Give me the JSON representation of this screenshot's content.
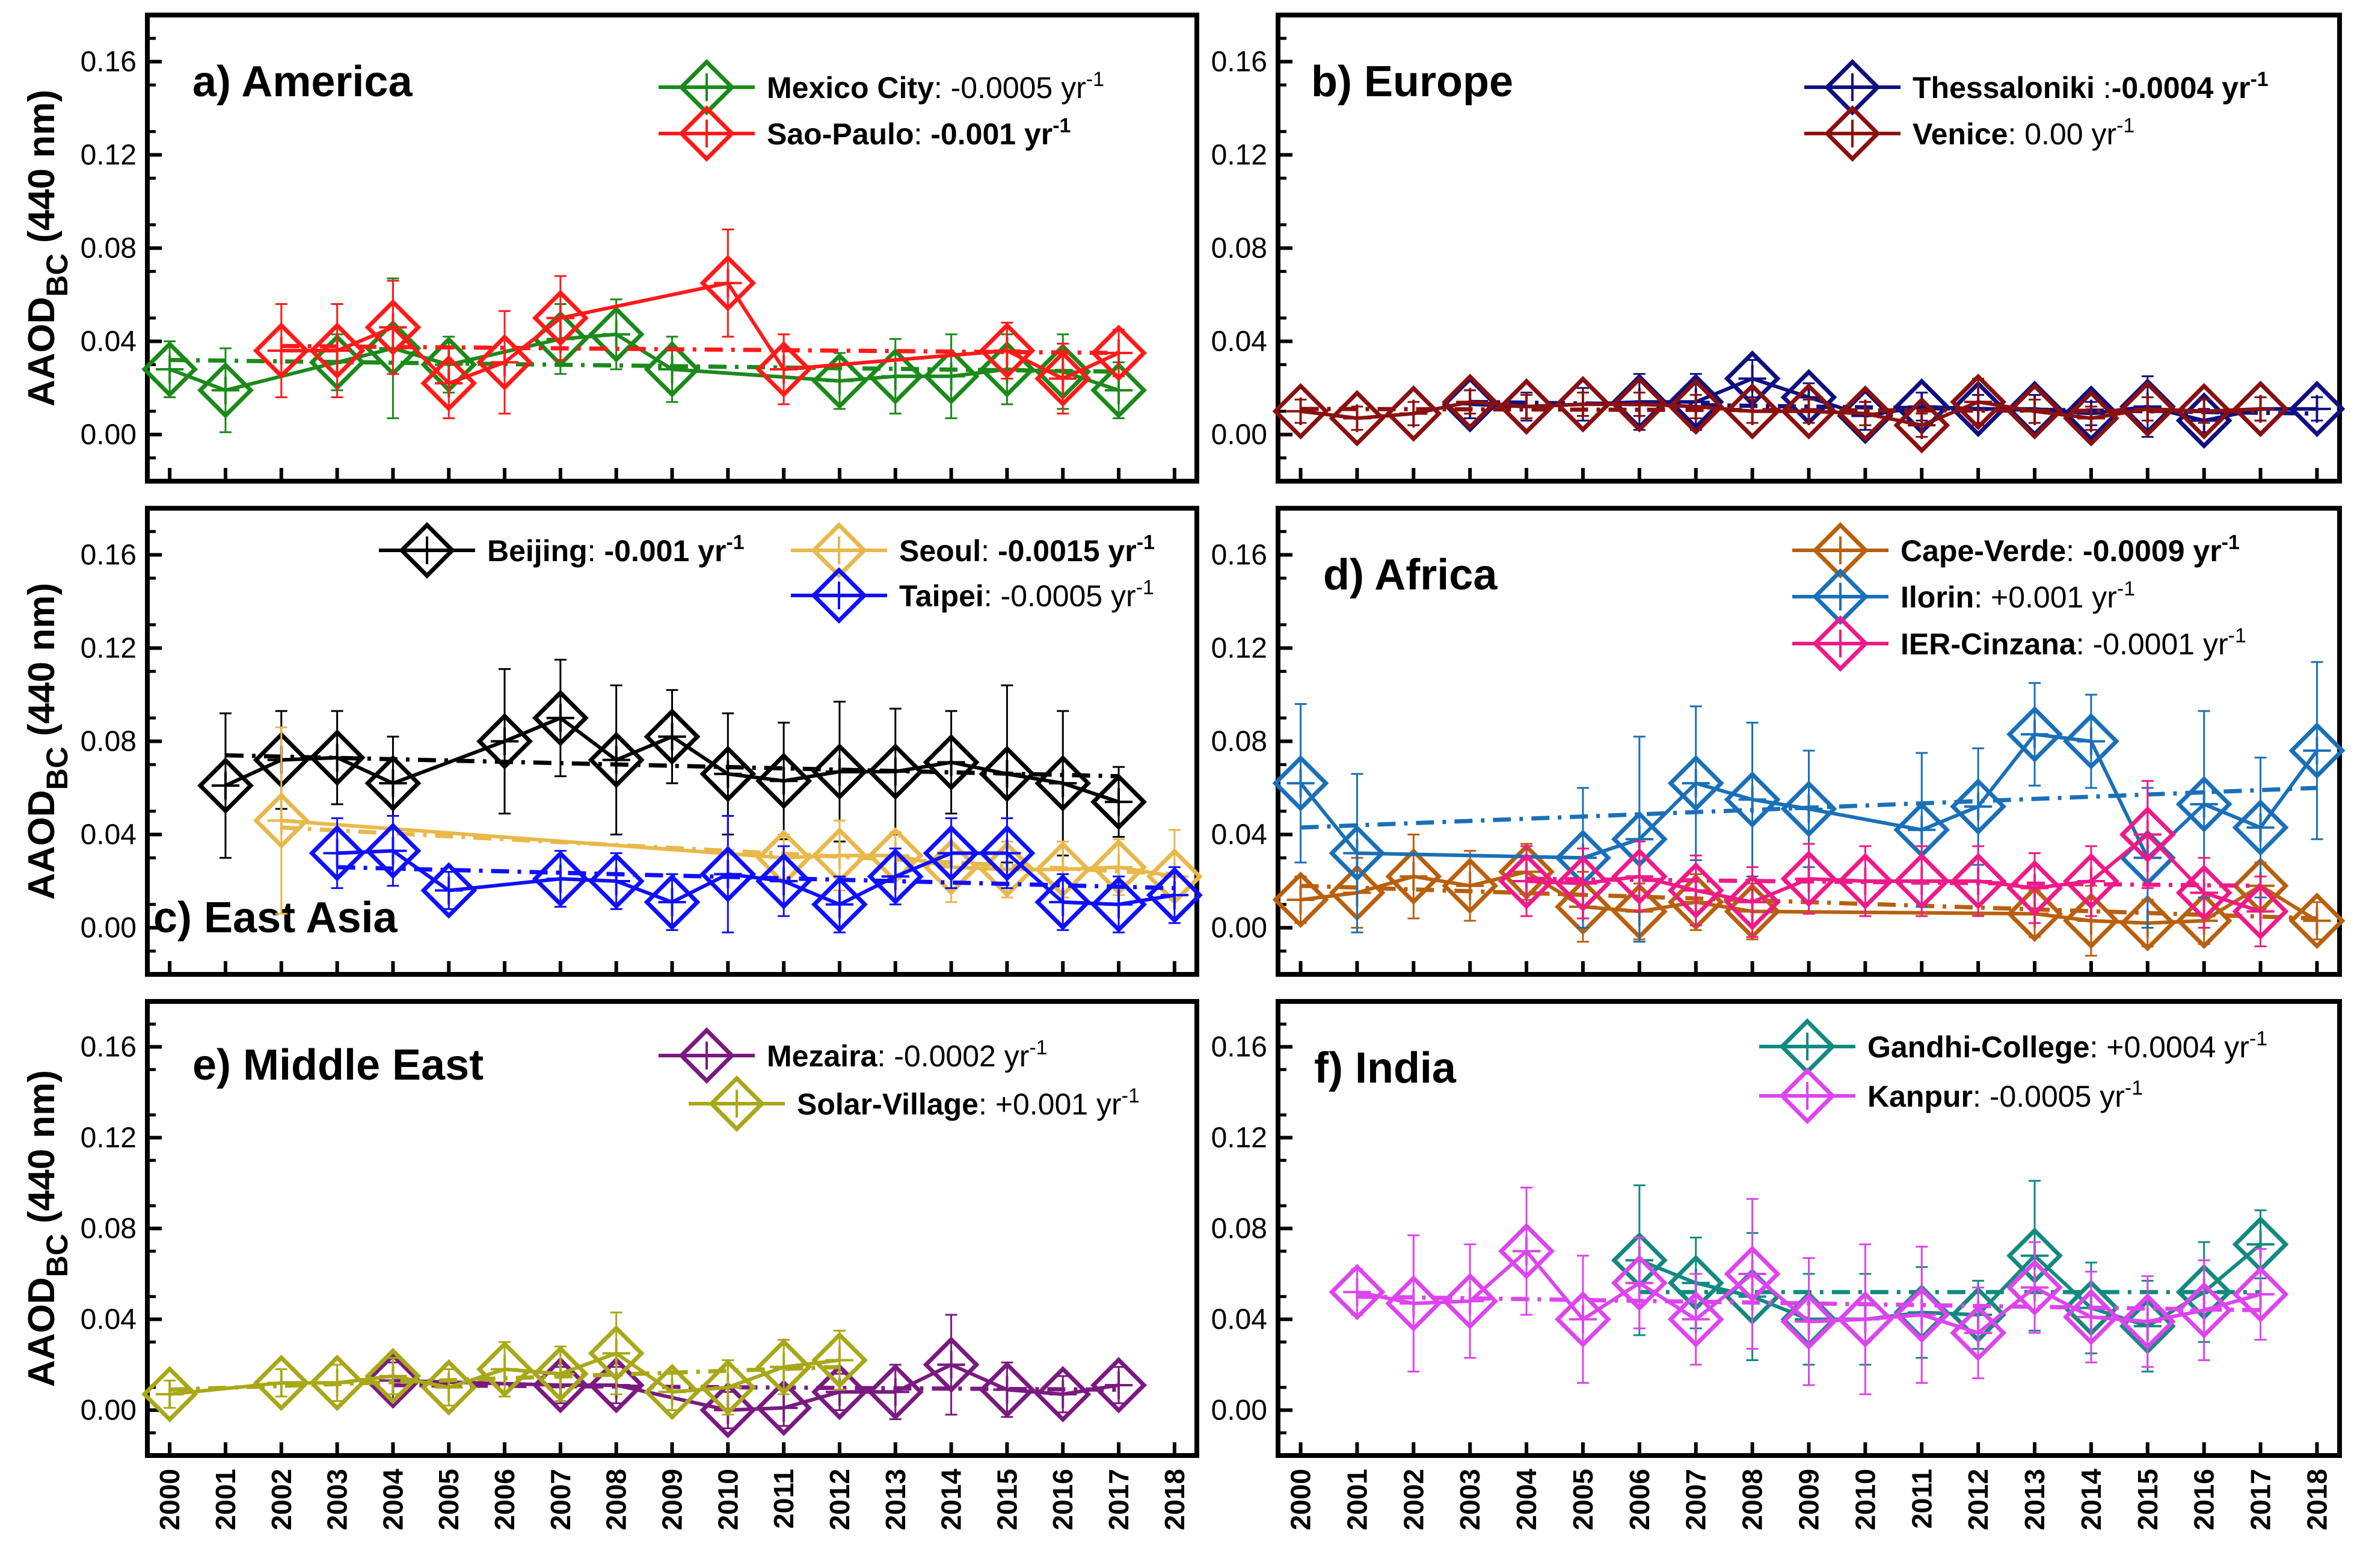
{
  "figure": {
    "ylabel_main": "AAOD",
    "ylabel_sub": "BC",
    "ylabel_unit": " (440 nm)",
    "yticks": [
      "0.00",
      "0.04",
      "0.08",
      "0.12",
      "0.16"
    ],
    "xticks": [
      "2000",
      "2001",
      "2002",
      "2003",
      "2004",
      "2005",
      "2006",
      "2007",
      "2008",
      "2009",
      "2010",
      "2011",
      "2012",
      "2013",
      "2014",
      "2015",
      "2016",
      "2017",
      "2018"
    ],
    "trend_unit": "yr",
    "trend_unit_exp": "-1"
  },
  "chart_data": [
    {
      "type": "line",
      "title": "a) America",
      "xlabel": "",
      "ylabel": "AAOD BC (440 nm)",
      "xlim": [
        1999.6,
        2018.4
      ],
      "ylim": [
        -0.02,
        0.18
      ],
      "series": [
        {
          "name": "Mexico City",
          "trend": "-0.0005",
          "trend_bold": false,
          "color": "#1b8a1b",
          "x": [
            2000,
            2001,
            2003,
            2004,
            2005,
            2007,
            2008,
            2009,
            2012,
            2013,
            2014,
            2015,
            2016,
            2017
          ],
          "values": [
            0.028,
            0.019,
            0.031,
            0.037,
            0.03,
            0.041,
            0.043,
            0.028,
            0.023,
            0.025,
            0.025,
            0.028,
            0.027,
            0.019
          ],
          "errors": [
            0.012,
            0.018,
            0.012,
            0.03,
            0.012,
            0.015,
            0.015,
            0.014,
            0.012,
            0.016,
            0.018,
            0.015,
            0.016,
            0.012
          ],
          "fit": {
            "x": [
              2000,
              2017
            ],
            "y": [
              0.032,
              0.027
            ]
          }
        },
        {
          "name": "Sao-Paulo",
          "trend": "-0.001",
          "trend_bold": true,
          "color": "#ff1a1a",
          "x": [
            2002,
            2003,
            2004,
            2005,
            2006,
            2007,
            2010,
            2011,
            2015,
            2016,
            2017
          ],
          "values": [
            0.036,
            0.036,
            0.046,
            0.022,
            0.031,
            0.05,
            0.065,
            0.028,
            0.036,
            0.024,
            0.035
          ],
          "errors": [
            0.02,
            0.02,
            0.02,
            0.015,
            0.022,
            0.018,
            0.023,
            0.015,
            0.012,
            0.015,
            0.01
          ],
          "fit": {
            "x": [
              2002,
              2017
            ],
            "y": [
              0.038,
              0.035
            ]
          }
        }
      ]
    },
    {
      "type": "line",
      "title": "b) Europe",
      "xlabel": "",
      "ylabel": "",
      "xlim": [
        1999.6,
        2018.4
      ],
      "ylim": [
        -0.02,
        0.18
      ],
      "series": [
        {
          "name": "Thessaloniki",
          "trend": "-0.0004",
          "trend_bold": true,
          "color": "#101080",
          "x": [
            2003,
            2004,
            2005,
            2006,
            2007,
            2008,
            2009,
            2010,
            2011,
            2012,
            2013,
            2014,
            2015,
            2016,
            2017,
            2018
          ],
          "values": [
            0.013,
            0.012,
            0.013,
            0.014,
            0.014,
            0.024,
            0.016,
            0.008,
            0.012,
            0.011,
            0.011,
            0.009,
            0.012,
            0.006,
            0.011,
            0.011
          ],
          "errors": [
            0.006,
            0.006,
            0.007,
            0.012,
            0.012,
            0.008,
            0.006,
            0.006,
            0.006,
            0.006,
            0.006,
            0.005,
            0.013,
            0.005,
            0.005,
            0.005
          ],
          "fit": {
            "x": [
              2003,
              2018
            ],
            "y": [
              0.014,
              0.009
            ]
          }
        },
        {
          "name": "Venice",
          "trend": "0.00",
          "trend_bold": false,
          "color": "#8b1010",
          "x": [
            2000,
            2001,
            2002,
            2003,
            2004,
            2005,
            2006,
            2007,
            2008,
            2009,
            2010,
            2011,
            2012,
            2013,
            2014,
            2015,
            2016,
            2017
          ],
          "values": [
            0.01,
            0.007,
            0.009,
            0.014,
            0.012,
            0.013,
            0.013,
            0.012,
            0.01,
            0.01,
            0.009,
            0.004,
            0.014,
            0.01,
            0.007,
            0.011,
            0.01,
            0.011
          ],
          "errors": [
            0.005,
            0.005,
            0.005,
            0.005,
            0.005,
            0.005,
            0.005,
            0.005,
            0.005,
            0.005,
            0.005,
            0.005,
            0.01,
            0.005,
            0.005,
            0.005,
            0.005,
            0.005
          ],
          "fit": {
            "x": [
              2000,
              2017
            ],
            "y": [
              0.011,
              0.01
            ]
          }
        }
      ]
    },
    {
      "type": "line",
      "title": "c) East Asia",
      "xlabel": "",
      "ylabel": "AAOD BC (440 nm)",
      "xlim": [
        1999.6,
        2018.4
      ],
      "ylim": [
        -0.02,
        0.18
      ],
      "series": [
        {
          "name": "Beijing",
          "trend": "-0.001",
          "trend_bold": true,
          "color": "#000000",
          "x": [
            2001,
            2002,
            2003,
            2004,
            2006,
            2007,
            2008,
            2009,
            2010,
            2011,
            2012,
            2013,
            2014,
            2015,
            2016,
            2017
          ],
          "values": [
            0.061,
            0.072,
            0.073,
            0.062,
            0.08,
            0.09,
            0.072,
            0.082,
            0.066,
            0.063,
            0.067,
            0.067,
            0.071,
            0.066,
            0.062,
            0.054
          ],
          "errors": [
            0.031,
            0.021,
            0.02,
            0.02,
            0.031,
            0.025,
            0.032,
            0.02,
            0.026,
            0.025,
            0.03,
            0.027,
            0.022,
            0.038,
            0.031,
            0.015
          ],
          "fit": {
            "x": [
              2001,
              2017
            ],
            "y": [
              0.074,
              0.065
            ]
          }
        },
        {
          "name": "Seoul",
          "trend": "-0.0015",
          "trend_bold": true,
          "color": "#e8b84a",
          "x": [
            2002,
            2011,
            2012,
            2013,
            2014,
            2015,
            2016,
            2017,
            2018
          ],
          "values": [
            0.046,
            0.03,
            0.031,
            0.031,
            0.026,
            0.025,
            0.025,
            0.026,
            0.022
          ],
          "errors": [
            0.04,
            0.01,
            0.015,
            0.01,
            0.015,
            0.012,
            0.012,
            0.012,
            0.02
          ],
          "fit": {
            "x": [
              2002,
              2018
            ],
            "y": [
              0.043,
              0.023
            ]
          }
        },
        {
          "name": "Taipei",
          "trend": "-0.0005",
          "trend_bold": false,
          "color": "#1010ff",
          "x": [
            2003,
            2004,
            2005,
            2007,
            2008,
            2009,
            2010,
            2011,
            2012,
            2013,
            2014,
            2015,
            2016,
            2017,
            2018
          ],
          "values": [
            0.032,
            0.033,
            0.016,
            0.021,
            0.02,
            0.011,
            0.023,
            0.02,
            0.01,
            0.022,
            0.032,
            0.032,
            0.011,
            0.01,
            0.014
          ],
          "errors": [
            0.015,
            0.015,
            0.008,
            0.012,
            0.012,
            0.012,
            0.025,
            0.015,
            0.012,
            0.012,
            0.015,
            0.015,
            0.012,
            0.012,
            0.012
          ],
          "fit": {
            "x": [
              2003,
              2018
            ],
            "y": [
              0.026,
              0.017
            ]
          }
        }
      ]
    },
    {
      "type": "line",
      "title": "d) Africa",
      "xlabel": "",
      "ylabel": "",
      "xlim": [
        1999.6,
        2018.4
      ],
      "ylim": [
        -0.02,
        0.18
      ],
      "series": [
        {
          "name": "Cape-Verde",
          "trend": "-0.0009",
          "trend_bold": true,
          "color": "#b8600f",
          "x": [
            2000,
            2001,
            2002,
            2003,
            2004,
            2005,
            2006,
            2007,
            2008,
            2013,
            2014,
            2015,
            2016,
            2017,
            2018
          ],
          "values": [
            0.012,
            0.015,
            0.022,
            0.018,
            0.024,
            0.009,
            0.007,
            0.011,
            0.007,
            0.006,
            0.003,
            0.002,
            0.003,
            0.018,
            0.003
          ],
          "errors": [
            0.01,
            0.015,
            0.018,
            0.015,
            0.012,
            0.015,
            0.012,
            0.012,
            0.012,
            0.01,
            0.015,
            0.01,
            0.01,
            0.01,
            0.008
          ],
          "fit": {
            "x": [
              2000,
              2018
            ],
            "y": [
              0.018,
              0.004
            ]
          }
        },
        {
          "name": "Ilorin",
          "trend": "+0.001",
          "trend_bold": false,
          "color": "#1a70b8",
          "x": [
            2000,
            2001,
            2005,
            2006,
            2007,
            2008,
            2009,
            2011,
            2012,
            2013,
            2014,
            2015,
            2016,
            2017,
            2018
          ],
          "values": [
            0.062,
            0.032,
            0.03,
            0.038,
            0.062,
            0.055,
            0.051,
            0.042,
            0.052,
            0.083,
            0.08,
            0.03,
            0.053,
            0.043,
            0.076
          ],
          "errors": [
            0.034,
            0.034,
            0.03,
            0.044,
            0.033,
            0.033,
            0.025,
            0.033,
            0.025,
            0.022,
            0.02,
            0.03,
            0.04,
            0.03,
            0.038
          ],
          "fit": {
            "x": [
              2000,
              2018
            ],
            "y": [
              0.043,
              0.06
            ]
          }
        },
        {
          "name": "IER-Cinzana",
          "trend": "-0.0001",
          "trend_bold": false,
          "color": "#ee1a88",
          "x": [
            2004,
            2005,
            2006,
            2007,
            2008,
            2009,
            2010,
            2011,
            2012,
            2013,
            2014,
            2015,
            2016,
            2017
          ],
          "values": [
            0.02,
            0.019,
            0.022,
            0.016,
            0.011,
            0.021,
            0.02,
            0.02,
            0.02,
            0.017,
            0.02,
            0.04,
            0.015,
            0.007
          ],
          "errors": [
            0.015,
            0.015,
            0.015,
            0.015,
            0.015,
            0.015,
            0.015,
            0.015,
            0.015,
            0.015,
            0.015,
            0.023,
            0.015,
            0.015
          ],
          "fit": {
            "x": [
              2004,
              2017
            ],
            "y": [
              0.021,
              0.018
            ]
          }
        }
      ]
    },
    {
      "type": "line",
      "title": "e) Middle East",
      "xlabel": "",
      "ylabel": "AAOD BC (440 nm)",
      "xlim": [
        1999.6,
        2018.4
      ],
      "ylim": [
        -0.02,
        0.18
      ],
      "series": [
        {
          "name": "Mezaira",
          "trend": "-0.0002",
          "trend_bold": false,
          "color": "#7a1a80",
          "x": [
            2004,
            2007,
            2008,
            2010,
            2011,
            2012,
            2013,
            2014,
            2015,
            2016,
            2017
          ],
          "values": [
            0.013,
            0.011,
            0.011,
            0.0,
            0.001,
            0.008,
            0.008,
            0.02,
            0.009,
            0.007,
            0.011
          ],
          "errors": [
            0.008,
            0.008,
            0.008,
            0.008,
            0.008,
            0.008,
            0.012,
            0.022,
            0.012,
            0.008,
            0.008
          ],
          "fit": {
            "x": [
              2004,
              2017
            ],
            "y": [
              0.011,
              0.009
            ]
          }
        },
        {
          "name": "Solar-Village",
          "trend": "+0.001",
          "trend_bold": false,
          "color": "#a8a818",
          "x": [
            2000,
            2002,
            2003,
            2004,
            2005,
            2006,
            2007,
            2008,
            2009,
            2010,
            2011,
            2012
          ],
          "values": [
            0.007,
            0.012,
            0.012,
            0.015,
            0.01,
            0.018,
            0.016,
            0.025,
            0.008,
            0.01,
            0.019,
            0.022
          ],
          "errors": [
            0.006,
            0.006,
            0.008,
            0.008,
            0.008,
            0.012,
            0.012,
            0.018,
            0.008,
            0.012,
            0.012,
            0.013
          ],
          "fit": {
            "x": [
              2000,
              2012
            ],
            "y": [
              0.009,
              0.019
            ]
          }
        }
      ]
    },
    {
      "type": "line",
      "title": "f) India",
      "xlabel": "",
      "ylabel": "",
      "xlim": [
        1999.6,
        2018.4
      ],
      "ylim": [
        -0.02,
        0.18
      ],
      "series": [
        {
          "name": "Gandhi-College",
          "trend": "+0.0004",
          "trend_bold": false,
          "color": "#138a80",
          "x": [
            2006,
            2007,
            2008,
            2009,
            2010,
            2011,
            2012,
            2013,
            2014,
            2015,
            2016,
            2017
          ],
          "values": [
            0.066,
            0.056,
            0.05,
            0.04,
            0.04,
            0.043,
            0.042,
            0.068,
            0.045,
            0.037,
            0.052,
            0.073
          ],
          "errors": [
            0.033,
            0.02,
            0.028,
            0.02,
            0.02,
            0.02,
            0.015,
            0.033,
            0.02,
            0.02,
            0.022,
            0.015
          ],
          "fit": {
            "x": [
              2006,
              2017
            ],
            "y": [
              0.052,
              0.052
            ]
          }
        },
        {
          "name": "Kanpur",
          "trend": "-0.0005",
          "trend_bold": false,
          "color": "#dd44ee",
          "x": [
            2001,
            2002,
            2003,
            2004,
            2005,
            2006,
            2007,
            2008,
            2009,
            2010,
            2011,
            2012,
            2013,
            2014,
            2015,
            2016,
            2017
          ],
          "values": [
            0.052,
            0.047,
            0.048,
            0.07,
            0.04,
            0.056,
            0.04,
            0.06,
            0.039,
            0.04,
            0.042,
            0.034,
            0.054,
            0.041,
            0.039,
            0.044,
            0.051
          ],
          "errors": [
            0.01,
            0.03,
            0.025,
            0.028,
            0.028,
            0.02,
            0.02,
            0.033,
            0.028,
            0.033,
            0.03,
            0.02,
            0.02,
            0.02,
            0.02,
            0.022,
            0.02
          ],
          "fit": {
            "x": [
              2001,
              2017
            ],
            "y": [
              0.05,
              0.044
            ]
          }
        }
      ]
    }
  ]
}
